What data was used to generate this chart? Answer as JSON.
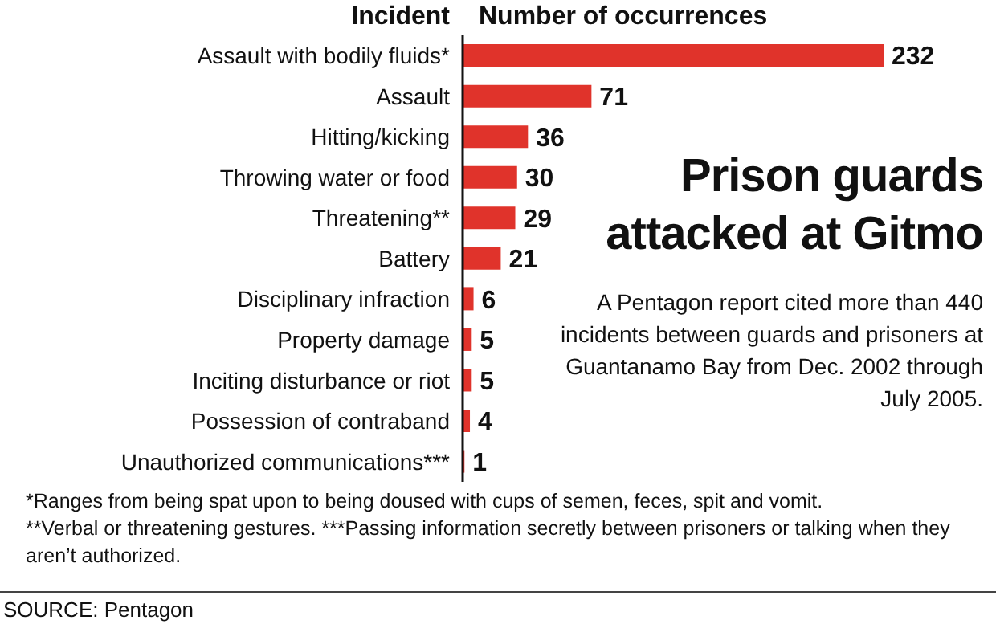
{
  "chart_data": {
    "type": "bar",
    "orientation": "horizontal",
    "title": "Prison guards attacked at Gitmo",
    "subtitle": "A Pentagon report cited more than 440 incidents between guards and prisoners at Guantanamo Bay from Dec. 2002 through July 2005.",
    "ylabel": "Incident",
    "xlabel": "Number of occurrences",
    "categories": [
      "Assault with bodily fluids*",
      "Assault",
      "Hitting/kicking",
      "Throwing water or food",
      "Threatening**",
      "Battery",
      "Disciplinary infraction",
      "Property damage",
      "Inciting disturbance or riot",
      "Possession of contraband",
      "Unauthorized communications***"
    ],
    "values": [
      232,
      71,
      36,
      30,
      29,
      21,
      6,
      5,
      5,
      4,
      1
    ],
    "color": "#e0332b",
    "data_labels": true,
    "annotations": [
      "*Ranges from being spat upon to being doused with cups of semen, feces, spit and vomit.",
      "**Verbal or threatening gestures. ***Passing information secretly between prisoners or talking when they aren’t authorized.",
      "SOURCE: Pentagon"
    ]
  }
}
